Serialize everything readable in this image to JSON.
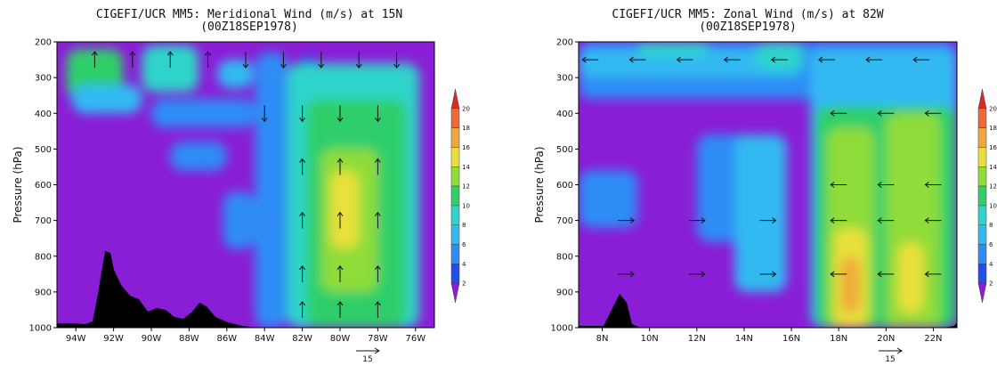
{
  "chart_data": [
    {
      "type": "heatmap",
      "subtype": "filled-contour with wind vectors, vertical cross-section",
      "title": "CIGEFI/UCR MM5: Meridional Wind (m/s) at 15N",
      "subtitle": "(00Z18SEP1978)",
      "xlabel": "",
      "ylabel": "Pressure (hPa)",
      "x_ticks": [
        "94W",
        "92W",
        "90W",
        "88W",
        "86W",
        "84W",
        "82W",
        "80W",
        "78W",
        "76W"
      ],
      "x_tick_values": [
        -94,
        -92,
        -90,
        -88,
        -86,
        -84,
        -82,
        -80,
        -78,
        -76
      ],
      "xlim": [
        -95.0,
        -75.0
      ],
      "y_ticks": [
        "200",
        "300",
        "400",
        "500",
        "600",
        "700",
        "800",
        "900",
        "1000"
      ],
      "y_tick_values": [
        200,
        300,
        400,
        500,
        600,
        700,
        800,
        900,
        1000
      ],
      "ylim": [
        1000,
        200
      ],
      "colorbar": {
        "levels": [
          2,
          4,
          6,
          8,
          10,
          12,
          14,
          16,
          18,
          20
        ],
        "tick_labels": [
          "2",
          "4",
          "6",
          "8",
          "10",
          "12",
          "14",
          "16",
          "18",
          "20"
        ],
        "colors": [
          "#8a1ed6",
          "#1f4fe8",
          "#2f8cf5",
          "#33b9f2",
          "#2fd4c9",
          "#2fcf6a",
          "#8fdc3a",
          "#e8e03a",
          "#f0a83a",
          "#ec6a3a",
          "#dc2a2a"
        ]
      },
      "reference_vector_label": "15",
      "terrain": true,
      "fields": [
        {
          "x": [
            -94.5,
            -91.5
          ],
          "p": [
            220,
            360
          ],
          "level": 10
        },
        {
          "x": [
            -90.5,
            -87.5
          ],
          "p": [
            210,
            340
          ],
          "level": 8
        },
        {
          "x": [
            -86.5,
            -84.6
          ],
          "p": [
            250,
            330
          ],
          "level": 6
        },
        {
          "x": [
            -82.2,
            -81.2
          ],
          "p": [
            240,
            300
          ],
          "level": 2
        },
        {
          "x": [
            -94.2,
            -90.5
          ],
          "p": [
            320,
            400
          ],
          "level": 6
        },
        {
          "x": [
            -90.0,
            -84.5
          ],
          "p": [
            360,
            440
          ],
          "level": 4
        },
        {
          "x": [
            -89.0,
            -86.0
          ],
          "p": [
            480,
            560
          ],
          "level": 4
        },
        {
          "x": [
            -86.2,
            -84.5
          ],
          "p": [
            620,
            780
          ],
          "level": 4
        },
        {
          "x": [
            -84.5,
            -82.8
          ],
          "p": [
            230,
            1000
          ],
          "level": 4
        },
        {
          "x": [
            -82.8,
            -75.8
          ],
          "p": [
            260,
            1000
          ],
          "level": 8
        },
        {
          "x": [
            -81.8,
            -76.5
          ],
          "p": [
            360,
            1000
          ],
          "level": 10
        },
        {
          "x": [
            -81.0,
            -78.0
          ],
          "p": [
            500,
            900
          ],
          "level": 12
        },
        {
          "x": [
            -80.5,
            -79.0
          ],
          "p": [
            560,
            780
          ],
          "level": 14
        }
      ],
      "winds": [
        {
          "x": -93,
          "p": 250,
          "dir": "up"
        },
        {
          "x": -91,
          "p": 250,
          "dir": "up"
        },
        {
          "x": -89,
          "p": 250,
          "dir": "up"
        },
        {
          "x": -87,
          "p": 250,
          "dir": "up"
        },
        {
          "x": -85,
          "p": 250,
          "dir": "down"
        },
        {
          "x": -83,
          "p": 250,
          "dir": "down"
        },
        {
          "x": -81,
          "p": 250,
          "dir": "down"
        },
        {
          "x": -79,
          "p": 250,
          "dir": "down"
        },
        {
          "x": -77,
          "p": 250,
          "dir": "down"
        },
        {
          "x": -84,
          "p": 400,
          "dir": "down"
        },
        {
          "x": -82,
          "p": 400,
          "dir": "down"
        },
        {
          "x": -80,
          "p": 400,
          "dir": "down"
        },
        {
          "x": -78,
          "p": 400,
          "dir": "down"
        },
        {
          "x": -82,
          "p": 550,
          "dir": "up"
        },
        {
          "x": -80,
          "p": 550,
          "dir": "up"
        },
        {
          "x": -78,
          "p": 550,
          "dir": "up"
        },
        {
          "x": -82,
          "p": 700,
          "dir": "up"
        },
        {
          "x": -80,
          "p": 700,
          "dir": "up"
        },
        {
          "x": -78,
          "p": 700,
          "dir": "up"
        },
        {
          "x": -82,
          "p": 850,
          "dir": "up"
        },
        {
          "x": -80,
          "p": 850,
          "dir": "up"
        },
        {
          "x": -78,
          "p": 850,
          "dir": "up"
        },
        {
          "x": -82,
          "p": 950,
          "dir": "up"
        },
        {
          "x": -80,
          "p": 950,
          "dir": "up"
        },
        {
          "x": -78,
          "p": 950,
          "dir": "up"
        }
      ]
    },
    {
      "type": "heatmap",
      "subtype": "filled-contour with wind vectors, vertical cross-section",
      "title": "CIGEFI/UCR MM5: Zonal Wind (m/s) at 82W",
      "subtitle": "(00Z18SEP1978)",
      "xlabel": "",
      "ylabel": "Pressure (hPa)",
      "x_ticks": [
        "8N",
        "10N",
        "12N",
        "14N",
        "16N",
        "18N",
        "20N",
        "22N"
      ],
      "x_tick_values": [
        8,
        10,
        12,
        14,
        16,
        18,
        20,
        22
      ],
      "xlim": [
        7.0,
        23.0
      ],
      "y_ticks": [
        "200",
        "300",
        "400",
        "500",
        "600",
        "700",
        "800",
        "900",
        "1000"
      ],
      "y_tick_values": [
        200,
        300,
        400,
        500,
        600,
        700,
        800,
        900,
        1000
      ],
      "ylim": [
        1000,
        200
      ],
      "colorbar": {
        "levels": [
          2,
          4,
          6,
          8,
          10,
          12,
          14,
          16,
          18,
          20
        ],
        "tick_labels": [
          "2",
          "4",
          "6",
          "8",
          "10",
          "12",
          "14",
          "16",
          "18",
          "20"
        ],
        "colors": [
          "#8a1ed6",
          "#1f4fe8",
          "#2f8cf5",
          "#33b9f2",
          "#2fd4c9",
          "#2fcf6a",
          "#8fdc3a",
          "#e8e03a",
          "#f0a83a",
          "#ec6a3a",
          "#dc2a2a"
        ]
      },
      "reference_vector_label": "15",
      "terrain": true,
      "fields": [
        {
          "x": [
            7.0,
            23.0
          ],
          "p": [
            200,
            360
          ],
          "level": 4
        },
        {
          "x": [
            7.0,
            16.5
          ],
          "p": [
            220,
            300
          ],
          "level": 6
        },
        {
          "x": [
            9.5,
            12.5
          ],
          "p": [
            200,
            240
          ],
          "level": 8
        },
        {
          "x": [
            14.5,
            16.5
          ],
          "p": [
            200,
            280
          ],
          "level": 8
        },
        {
          "x": [
            7.0,
            9.5
          ],
          "p": [
            560,
            720
          ],
          "level": 4
        },
        {
          "x": [
            12.0,
            14.3
          ],
          "p": [
            460,
            760
          ],
          "level": 4
        },
        {
          "x": [
            13.6,
            15.8
          ],
          "p": [
            460,
            900
          ],
          "level": 6
        },
        {
          "x": [
            16.8,
            23.0
          ],
          "p": [
            220,
            1000
          ],
          "level": 6
        },
        {
          "x": [
            17.0,
            23.0
          ],
          "p": [
            380,
            1000
          ],
          "level": 10
        },
        {
          "x": [
            17.5,
            19.5
          ],
          "p": [
            440,
            1000
          ],
          "level": 12
        },
        {
          "x": [
            20.0,
            22.3
          ],
          "p": [
            400,
            1000
          ],
          "level": 12
        },
        {
          "x": [
            17.8,
            19.2
          ],
          "p": [
            720,
            1000
          ],
          "level": 14
        },
        {
          "x": [
            20.5,
            21.6
          ],
          "p": [
            760,
            960
          ],
          "level": 14
        },
        {
          "x": [
            18.1,
            18.9
          ],
          "p": [
            800,
            960
          ],
          "level": 16
        }
      ],
      "winds": [
        {
          "x": 7.5,
          "p": 250,
          "dir": "left"
        },
        {
          "x": 9.5,
          "p": 250,
          "dir": "left"
        },
        {
          "x": 11.5,
          "p": 250,
          "dir": "left"
        },
        {
          "x": 13.5,
          "p": 250,
          "dir": "left"
        },
        {
          "x": 15.5,
          "p": 250,
          "dir": "left"
        },
        {
          "x": 17.5,
          "p": 250,
          "dir": "left"
        },
        {
          "x": 19.5,
          "p": 250,
          "dir": "left"
        },
        {
          "x": 21.5,
          "p": 250,
          "dir": "left"
        },
        {
          "x": 18,
          "p": 400,
          "dir": "left"
        },
        {
          "x": 20,
          "p": 400,
          "dir": "left"
        },
        {
          "x": 22,
          "p": 400,
          "dir": "left"
        },
        {
          "x": 18,
          "p": 600,
          "dir": "left"
        },
        {
          "x": 20,
          "p": 600,
          "dir": "left"
        },
        {
          "x": 22,
          "p": 600,
          "dir": "left"
        },
        {
          "x": 9,
          "p": 700,
          "dir": "right"
        },
        {
          "x": 12,
          "p": 700,
          "dir": "right"
        },
        {
          "x": 15,
          "p": 700,
          "dir": "right"
        },
        {
          "x": 18,
          "p": 700,
          "dir": "left"
        },
        {
          "x": 20,
          "p": 700,
          "dir": "left"
        },
        {
          "x": 22,
          "p": 700,
          "dir": "left"
        },
        {
          "x": 9,
          "p": 850,
          "dir": "right"
        },
        {
          "x": 12,
          "p": 850,
          "dir": "right"
        },
        {
          "x": 15,
          "p": 850,
          "dir": "right"
        },
        {
          "x": 18,
          "p": 850,
          "dir": "left"
        },
        {
          "x": 20,
          "p": 850,
          "dir": "left"
        },
        {
          "x": 22,
          "p": 850,
          "dir": "left"
        }
      ]
    }
  ]
}
